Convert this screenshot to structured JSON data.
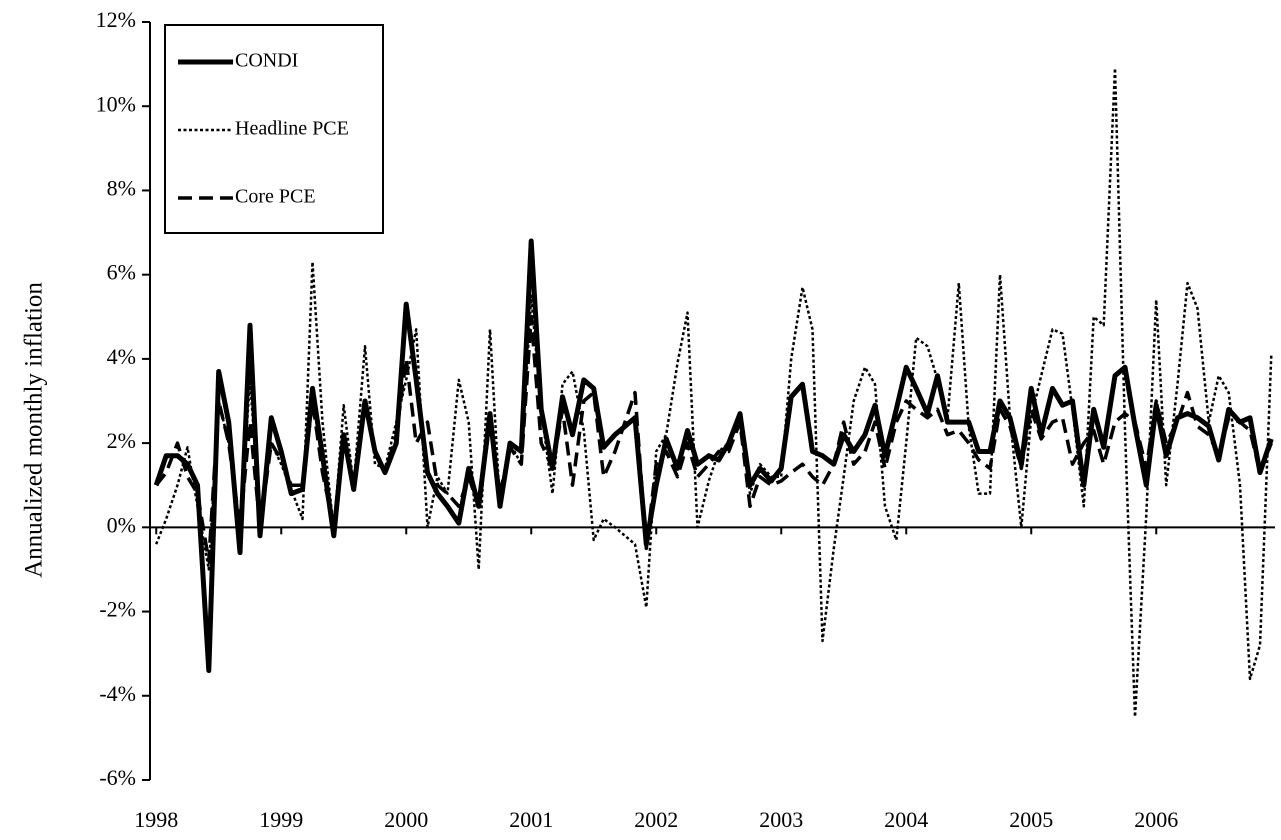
{
  "chart_data": {
    "type": "line",
    "ylabel": "Annualized monthly inflation",
    "x": [
      1998.0,
      1998.08,
      1998.17,
      1998.25,
      1998.33,
      1998.42,
      1998.5,
      1998.58,
      1998.67,
      1998.75,
      1998.83,
      1998.92,
      1999.0,
      1999.08,
      1999.17,
      1999.25,
      1999.33,
      1999.42,
      1999.5,
      1999.58,
      1999.67,
      1999.75,
      1999.83,
      1999.92,
      2000.0,
      2000.08,
      2000.17,
      2000.25,
      2000.33,
      2000.42,
      2000.5,
      2000.58,
      2000.67,
      2000.75,
      2000.83,
      2000.92,
      2001.0,
      2001.08,
      2001.17,
      2001.25,
      2001.33,
      2001.42,
      2001.5,
      2001.58,
      2001.67,
      2001.75,
      2001.83,
      2001.92,
      2002.0,
      2002.08,
      2002.17,
      2002.25,
      2002.33,
      2002.42,
      2002.5,
      2002.58,
      2002.67,
      2002.75,
      2002.83,
      2002.92,
      2003.0,
      2003.08,
      2003.17,
      2003.25,
      2003.33,
      2003.42,
      2003.5,
      2003.58,
      2003.67,
      2003.75,
      2003.83,
      2003.92,
      2004.0,
      2004.08,
      2004.17,
      2004.25,
      2004.33,
      2004.42,
      2004.5,
      2004.58,
      2004.67,
      2004.75,
      2004.83,
      2004.92,
      2005.0,
      2005.08,
      2005.17,
      2005.25,
      2005.33,
      2005.42,
      2005.5,
      2005.58,
      2005.67,
      2005.75,
      2005.83,
      2005.92,
      2006.0,
      2006.08,
      2006.17,
      2006.25,
      2006.33,
      2006.42,
      2006.5,
      2006.58,
      2006.67,
      2006.75,
      2006.83,
      2006.92
    ],
    "series": [
      {
        "name": "CONDI",
        "color": "#000000",
        "width": 5,
        "dash": "none",
        "values": [
          1.0,
          1.7,
          1.7,
          1.5,
          1.0,
          -3.4,
          3.7,
          2.5,
          -0.6,
          4.8,
          -0.2,
          2.6,
          1.8,
          0.8,
          0.9,
          3.3,
          1.7,
          -0.2,
          2.2,
          0.9,
          3.0,
          1.8,
          1.3,
          2.0,
          5.3,
          3.5,
          1.3,
          0.8,
          0.5,
          0.1,
          1.4,
          0.5,
          2.7,
          0.5,
          2.0,
          1.8,
          6.8,
          2.8,
          1.4,
          3.1,
          2.2,
          3.5,
          3.3,
          1.9,
          2.2,
          2.4,
          2.6,
          -0.4,
          1.0,
          2.1,
          1.4,
          2.3,
          1.5,
          1.7,
          1.6,
          2.0,
          2.7,
          1.0,
          1.4,
          1.1,
          1.4,
          3.1,
          3.4,
          1.8,
          1.7,
          1.5,
          2.2,
          1.8,
          2.2,
          2.9,
          1.7,
          2.8,
          3.8,
          3.3,
          2.7,
          3.6,
          2.5,
          2.5,
          2.5,
          1.8,
          1.8,
          3.0,
          2.6,
          1.5,
          3.3,
          2.2,
          3.3,
          2.9,
          3.0,
          1.0,
          2.8,
          1.9,
          3.6,
          3.8,
          2.4,
          1.0,
          2.9,
          1.7,
          2.6,
          2.7,
          2.6,
          2.4,
          1.6,
          2.8,
          2.5,
          2.6,
          1.3,
          2.1
        ]
      },
      {
        "name": "Headline PCE",
        "color": "#000000",
        "width": 2.5,
        "dash": "3,2.5",
        "values": [
          -0.4,
          0.2,
          1.0,
          1.9,
          0.5,
          -1.0,
          3.0,
          2.0,
          0.0,
          3.5,
          0.2,
          2.0,
          1.5,
          0.9,
          0.2,
          6.3,
          2.5,
          -0.1,
          2.9,
          1.0,
          4.3,
          1.5,
          1.4,
          2.5,
          3.5,
          4.7,
          0.0,
          1.2,
          0.8,
          3.5,
          2.5,
          -1.0,
          4.7,
          0.5,
          2.0,
          1.5,
          5.5,
          2.8,
          0.8,
          3.4,
          3.7,
          2.3,
          -0.3,
          0.2,
          0.0,
          -0.2,
          -0.4,
          -1.9,
          1.8,
          2.2,
          3.9,
          5.1,
          0.0,
          1.1,
          1.8,
          2.0,
          2.5,
          0.8,
          1.5,
          1.2,
          1.2,
          4.0,
          5.7,
          4.7,
          -2.7,
          -0.5,
          1.2,
          3.0,
          3.8,
          3.4,
          0.5,
          -0.3,
          2.0,
          4.5,
          4.3,
          3.5,
          2.6,
          5.8,
          2.4,
          0.8,
          0.8,
          6.0,
          2.6,
          0.0,
          2.6,
          3.6,
          4.7,
          4.6,
          2.8,
          0.5,
          5.0,
          4.8,
          10.9,
          2.3,
          -4.5,
          0.3,
          5.4,
          1.0,
          3.4,
          5.8,
          5.2,
          2.5,
          3.6,
          3.2,
          1.0,
          -3.6,
          -2.8,
          4.1
        ]
      },
      {
        "name": "Core PCE",
        "color": "#000000",
        "width": 3.5,
        "dash": "14,7",
        "values": [
          1.0,
          1.3,
          2.0,
          1.2,
          0.8,
          -0.8,
          3.0,
          2.0,
          0.0,
          2.5,
          0.0,
          2.0,
          1.6,
          1.0,
          1.0,
          3.0,
          1.3,
          0.0,
          2.2,
          1.0,
          3.0,
          1.8,
          1.3,
          2.2,
          4.0,
          2.0,
          2.5,
          1.0,
          0.8,
          0.5,
          1.2,
          0.5,
          2.5,
          0.8,
          1.9,
          1.5,
          5.0,
          2.0,
          1.4,
          2.8,
          1.0,
          3.0,
          3.2,
          1.2,
          1.8,
          2.5,
          3.2,
          -0.5,
          1.5,
          1.8,
          1.2,
          2.0,
          1.2,
          1.5,
          1.8,
          1.8,
          2.5,
          0.5,
          1.2,
          1.0,
          1.1,
          1.3,
          1.5,
          1.2,
          1.0,
          1.5,
          2.5,
          1.5,
          1.8,
          2.5,
          1.4,
          2.5,
          3.0,
          2.8,
          2.6,
          2.8,
          2.2,
          2.3,
          2.0,
          1.6,
          1.4,
          2.8,
          2.4,
          1.4,
          2.8,
          2.1,
          2.5,
          2.6,
          1.5,
          2.0,
          2.3,
          1.5,
          2.5,
          2.7,
          2.5,
          1.4,
          3.0,
          2.0,
          2.5,
          3.2,
          2.4,
          2.2,
          1.7,
          2.6,
          2.5,
          2.3,
          1.3,
          2.0
        ]
      }
    ],
    "xlim": [
      1997.95,
      2006.95
    ],
    "xticks": [
      1998,
      1999,
      2000,
      2001,
      2002,
      2003,
      2004,
      2005,
      2006
    ],
    "ylim": [
      -6,
      12
    ],
    "yticks": [
      {
        "value": -6,
        "label": "-6%"
      },
      {
        "value": -4,
        "label": "-4%"
      },
      {
        "value": -2,
        "label": "-2%"
      },
      {
        "value": 0,
        "label": "0%"
      },
      {
        "value": 2,
        "label": "2%"
      },
      {
        "value": 4,
        "label": "4%"
      },
      {
        "value": 6,
        "label": "6%"
      },
      {
        "value": 8,
        "label": "8%"
      },
      {
        "value": 10,
        "label": "10%"
      },
      {
        "value": 12,
        "label": "12%"
      }
    ],
    "legend": "upper-left"
  }
}
